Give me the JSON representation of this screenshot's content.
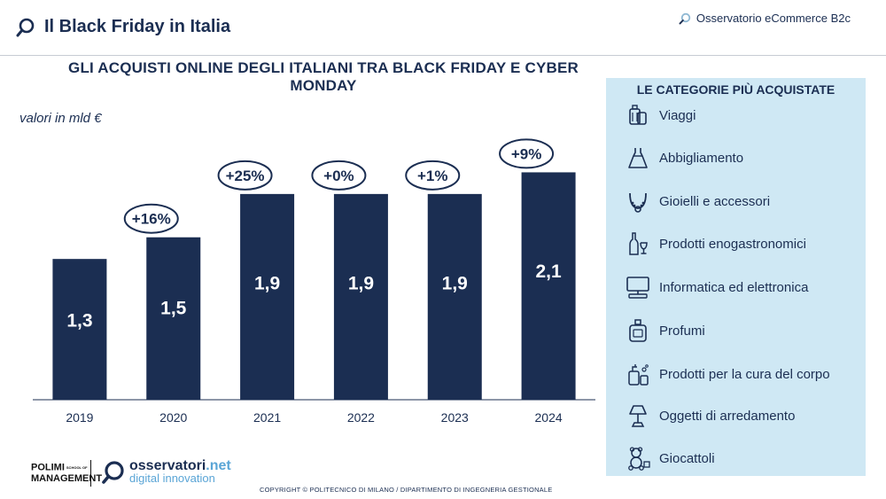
{
  "header": {
    "title": "Il Black Friday in Italia",
    "brand": "Osservatorio eCommerce B2c"
  },
  "chart_data": {
    "type": "bar",
    "title": "GLI ACQUISTI ONLINE DEGLI ITALIANI TRA BLACK FRIDAY E CYBER MONDAY",
    "unit_label": "valori in mld €",
    "categories": [
      "2019",
      "2020",
      "2021",
      "2022",
      "2023",
      "2024"
    ],
    "values": [
      1.3,
      1.5,
      1.9,
      1.9,
      1.9,
      2.1
    ],
    "value_labels": [
      "1,3",
      "1,5",
      "1,9",
      "1,9",
      "1,9",
      "2,1"
    ],
    "growth_labels": [
      "",
      "+16%",
      "+25%",
      "+0%",
      "+1%",
      "+9%"
    ],
    "ylim": [
      0,
      2.3
    ],
    "bar_color": "#1b2e52",
    "grid": false
  },
  "categories_panel": {
    "title": "LE CATEGORIE PIÙ ACQUISTATE",
    "background": "#cfe8f4",
    "items": [
      {
        "label": "Viaggi",
        "icon": "luggage-icon"
      },
      {
        "label": "Abbigliamento",
        "icon": "dress-icon"
      },
      {
        "label": "Gioielli e accessori",
        "icon": "necklace-icon"
      },
      {
        "label": "Prodotti enogastronomici",
        "icon": "wine-icon"
      },
      {
        "label": "Informatica ed elettronica",
        "icon": "computer-icon"
      },
      {
        "label": "Profumi",
        "icon": "perfume-icon"
      },
      {
        "label": "Prodotti per la cura del corpo",
        "icon": "body-care-icon"
      },
      {
        "label": "Oggetti di arredamento",
        "icon": "lamp-icon"
      },
      {
        "label": "Giocattoli",
        "icon": "teddy-bear-icon"
      }
    ]
  },
  "footer": {
    "polimi_line1": "POLIMI",
    "polimi_line2": "MANAGEMENT",
    "polimi_small": "SCHOOL OF",
    "osservatori_brand": "osservatori",
    "osservatori_tld": ".net",
    "osservatori_sub": "digital innovation",
    "copyright": "COPYRIGHT © POLITECNICO DI MILANO / DIPARTIMENTO DI INGEGNERIA GESTIONALE"
  }
}
